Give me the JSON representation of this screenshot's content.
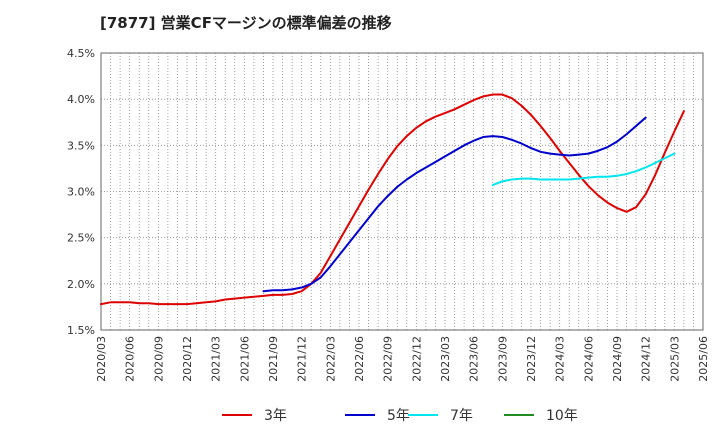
{
  "chart_data": {
    "type": "line",
    "title": "[7877]  営業CFマージンの標準偏差の推移",
    "xlabel": "",
    "ylabel": "",
    "ylim": [
      1.5,
      4.5
    ],
    "y_ticks": [
      "1.5%",
      "2.0%",
      "2.5%",
      "3.0%",
      "3.5%",
      "4.0%",
      "4.5%"
    ],
    "x_ticks": [
      "2020/03",
      "2020/06",
      "2020/09",
      "2020/12",
      "2021/03",
      "2021/06",
      "2021/09",
      "2021/12",
      "2022/03",
      "2022/06",
      "2022/09",
      "2022/12",
      "2023/03",
      "2023/06",
      "2023/09",
      "2023/12",
      "2024/03",
      "2024/06",
      "2024/09",
      "2024/12",
      "2025/03",
      "2025/06"
    ],
    "grid": true,
    "legend_position": "bottom",
    "series": [
      {
        "name": "3年",
        "color": "#dd0000",
        "points": [
          [
            "2020/03",
            1.78
          ],
          [
            "2020/04",
            1.8
          ],
          [
            "2020/05",
            1.8
          ],
          [
            "2020/06",
            1.8
          ],
          [
            "2020/07",
            1.79
          ],
          [
            "2020/08",
            1.79
          ],
          [
            "2020/09",
            1.78
          ],
          [
            "2020/10",
            1.78
          ],
          [
            "2020/11",
            1.78
          ],
          [
            "2020/12",
            1.78
          ],
          [
            "2021/01",
            1.79
          ],
          [
            "2021/02",
            1.8
          ],
          [
            "2021/03",
            1.81
          ],
          [
            "2021/04",
            1.83
          ],
          [
            "2021/05",
            1.84
          ],
          [
            "2021/06",
            1.85
          ],
          [
            "2021/07",
            1.86
          ],
          [
            "2021/08",
            1.87
          ],
          [
            "2021/09",
            1.88
          ],
          [
            "2021/10",
            1.88
          ],
          [
            "2021/11",
            1.89
          ],
          [
            "2021/12",
            1.92
          ],
          [
            "2022/01",
            2.0
          ],
          [
            "2022/02",
            2.12
          ],
          [
            "2022/03",
            2.3
          ],
          [
            "2022/04",
            2.48
          ],
          [
            "2022/05",
            2.66
          ],
          [
            "2022/06",
            2.84
          ],
          [
            "2022/07",
            3.02
          ],
          [
            "2022/08",
            3.19
          ],
          [
            "2022/09",
            3.35
          ],
          [
            "2022/10",
            3.49
          ],
          [
            "2022/11",
            3.6
          ],
          [
            "2022/12",
            3.69
          ],
          [
            "2023/01",
            3.76
          ],
          [
            "2023/02",
            3.81
          ],
          [
            "2023/03",
            3.85
          ],
          [
            "2023/04",
            3.89
          ],
          [
            "2023/05",
            3.94
          ],
          [
            "2023/06",
            3.99
          ],
          [
            "2023/07",
            4.03
          ],
          [
            "2023/08",
            4.05
          ],
          [
            "2023/09",
            4.05
          ],
          [
            "2023/10",
            4.01
          ],
          [
            "2023/11",
            3.93
          ],
          [
            "2023/12",
            3.83
          ],
          [
            "2024/01",
            3.71
          ],
          [
            "2024/02",
            3.58
          ],
          [
            "2024/03",
            3.44
          ],
          [
            "2024/04",
            3.31
          ],
          [
            "2024/05",
            3.18
          ],
          [
            "2024/06",
            3.06
          ],
          [
            "2024/07",
            2.96
          ],
          [
            "2024/08",
            2.88
          ],
          [
            "2024/09",
            2.82
          ],
          [
            "2024/10",
            2.78
          ],
          [
            "2024/11",
            2.83
          ],
          [
            "2024/12",
            2.97
          ],
          [
            "2025/01",
            3.18
          ],
          [
            "2025/02",
            3.42
          ],
          [
            "2025/03",
            3.65
          ],
          [
            "2025/04",
            3.87
          ]
        ]
      },
      {
        "name": "5年",
        "color": "#0000cc",
        "points": [
          [
            "2021/08",
            1.92
          ],
          [
            "2021/09",
            1.93
          ],
          [
            "2021/10",
            1.93
          ],
          [
            "2021/11",
            1.94
          ],
          [
            "2021/12",
            1.96
          ],
          [
            "2022/01",
            2.0
          ],
          [
            "2022/02",
            2.07
          ],
          [
            "2022/03",
            2.19
          ],
          [
            "2022/04",
            2.32
          ],
          [
            "2022/05",
            2.45
          ],
          [
            "2022/06",
            2.58
          ],
          [
            "2022/07",
            2.71
          ],
          [
            "2022/08",
            2.84
          ],
          [
            "2022/09",
            2.95
          ],
          [
            "2022/10",
            3.05
          ],
          [
            "2022/11",
            3.13
          ],
          [
            "2022/12",
            3.2
          ],
          [
            "2023/01",
            3.26
          ],
          [
            "2023/02",
            3.32
          ],
          [
            "2023/03",
            3.38
          ],
          [
            "2023/04",
            3.44
          ],
          [
            "2023/05",
            3.5
          ],
          [
            "2023/06",
            3.55
          ],
          [
            "2023/07",
            3.59
          ],
          [
            "2023/08",
            3.6
          ],
          [
            "2023/09",
            3.59
          ],
          [
            "2023/10",
            3.56
          ],
          [
            "2023/11",
            3.52
          ],
          [
            "2023/12",
            3.47
          ],
          [
            "2024/01",
            3.43
          ],
          [
            "2024/02",
            3.41
          ],
          [
            "2024/03",
            3.4
          ],
          [
            "2024/04",
            3.39
          ],
          [
            "2024/05",
            3.4
          ],
          [
            "2024/06",
            3.41
          ],
          [
            "2024/07",
            3.44
          ],
          [
            "2024/08",
            3.48
          ],
          [
            "2024/09",
            3.54
          ],
          [
            "2024/10",
            3.62
          ],
          [
            "2024/11",
            3.71
          ],
          [
            "2024/12",
            3.8
          ]
        ]
      },
      {
        "name": "7年",
        "color": "#00e5ee",
        "points": [
          [
            "2023/08",
            3.07
          ],
          [
            "2023/09",
            3.11
          ],
          [
            "2023/10",
            3.13
          ],
          [
            "2023/11",
            3.14
          ],
          [
            "2023/12",
            3.14
          ],
          [
            "2024/01",
            3.13
          ],
          [
            "2024/02",
            3.13
          ],
          [
            "2024/03",
            3.13
          ],
          [
            "2024/04",
            3.13
          ],
          [
            "2024/05",
            3.14
          ],
          [
            "2024/06",
            3.15
          ],
          [
            "2024/07",
            3.16
          ],
          [
            "2024/08",
            3.16
          ],
          [
            "2024/09",
            3.17
          ],
          [
            "2024/10",
            3.19
          ],
          [
            "2024/11",
            3.22
          ],
          [
            "2024/12",
            3.26
          ],
          [
            "2025/01",
            3.31
          ],
          [
            "2025/02",
            3.36
          ],
          [
            "2025/03",
            3.41
          ]
        ]
      },
      {
        "name": "10年",
        "color": "#228b22",
        "points": []
      }
    ]
  }
}
